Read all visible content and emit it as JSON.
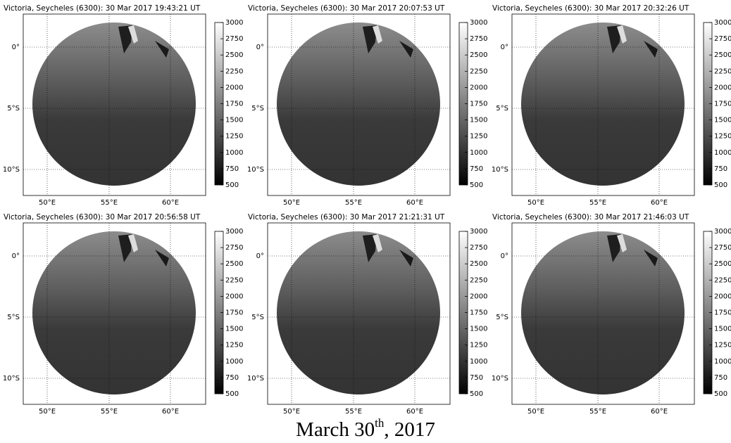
{
  "panels": [
    {
      "title": "Victoria, Seycheles (6300): 30 Mar 2017 19:43:21 UT"
    },
    {
      "title": "Victoria, Seycheles (6300): 30 Mar 2017 20:07:53 UT"
    },
    {
      "title": "Victoria, Seycheles (6300): 30 Mar 2017 20:32:26 UT"
    },
    {
      "title": "Victoria, Seycheles (6300): 30 Mar 2017 20:56:58 UT"
    },
    {
      "title": "Victoria, Seycheles (6300): 30 Mar 2017 21:21:31 UT"
    },
    {
      "title": "Victoria, Seycheles (6300): 30 Mar 2017 21:46:03 UT"
    }
  ],
  "lon_ticks": [
    "50°E",
    "55°E",
    "60°E"
  ],
  "lat_ticks": [
    "0°",
    "5°S",
    "10°S"
  ],
  "colorbar": {
    "lim": [
      500,
      3000
    ],
    "ticks": [
      500,
      750,
      1000,
      1250,
      1500,
      1750,
      2000,
      2250,
      2500,
      2750,
      3000
    ]
  },
  "caption": {
    "main": "March 30",
    "superscript": "th",
    "rest": ", 2017"
  }
}
